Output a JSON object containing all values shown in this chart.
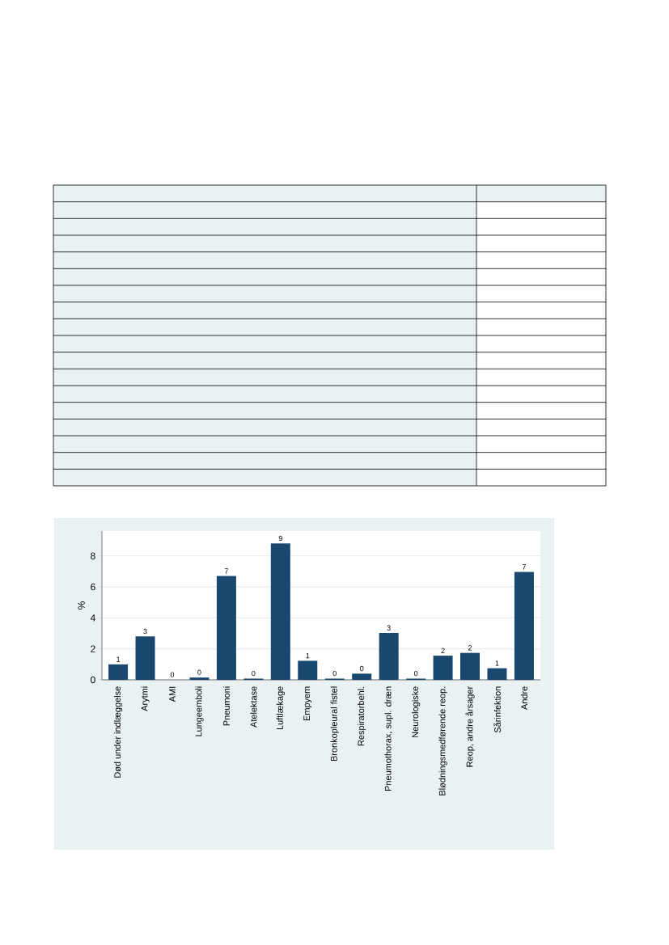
{
  "chart_data": {
    "type": "bar",
    "categories": [
      "Død under indlæggelse",
      "Arytmi",
      "AMI",
      "Lungeemboli",
      "Pneumoni",
      "Atelektase",
      "Luftlækage",
      "Empyem",
      "Bronkopleural fistel",
      "Respiratorbehl.",
      "Pneumothorax, supl. dræn",
      "Neurologiske",
      "Blødningsmedførende reop.",
      "Reop, andre årsager",
      "Sårinfektion",
      "Andre"
    ],
    "values": [
      1.0,
      2.8,
      0,
      0.15,
      6.7,
      0.08,
      8.8,
      1.23,
      0.08,
      0.4,
      3.02,
      0.08,
      1.56,
      1.74,
      0.75,
      6.96
    ],
    "value_labels": [
      "1",
      "3",
      "0",
      "0",
      "7",
      "0",
      "9",
      "1",
      "0",
      "0",
      "3",
      "0",
      "2",
      "2",
      "1",
      "7"
    ],
    "color": "#1a476f",
    "ylabel": "%",
    "ylim": [
      0,
      9.6
    ],
    "yticks": [
      0,
      2,
      4,
      6,
      8
    ],
    "grid": "y"
  }
}
